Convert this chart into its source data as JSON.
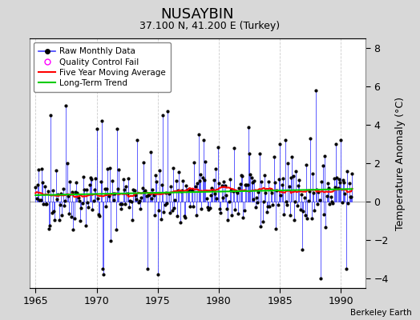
{
  "title": "NUSAYBIN",
  "subtitle": "37.100 N, 41.200 E (Turkey)",
  "ylabel": "Temperature Anomaly (°C)",
  "credit": "Berkeley Earth",
  "xlim": [
    1964.5,
    1992.0
  ],
  "ylim": [
    -4.5,
    8.5
  ],
  "yticks": [
    -4,
    -2,
    0,
    2,
    4,
    6,
    8
  ],
  "xticks": [
    1965,
    1970,
    1975,
    1980,
    1985,
    1990
  ],
  "fig_bg_color": "#d8d8d8",
  "plot_bg_color": "#ffffff",
  "raw_line_color": "#4040ff",
  "raw_dot_color": "#000000",
  "ma_color": "#ff0000",
  "trend_color": "#00cc00",
  "qc_color": "#ff00ff",
  "seed": 42,
  "n_points": 312,
  "start_year": 1965.0,
  "end_year": 1991.0
}
